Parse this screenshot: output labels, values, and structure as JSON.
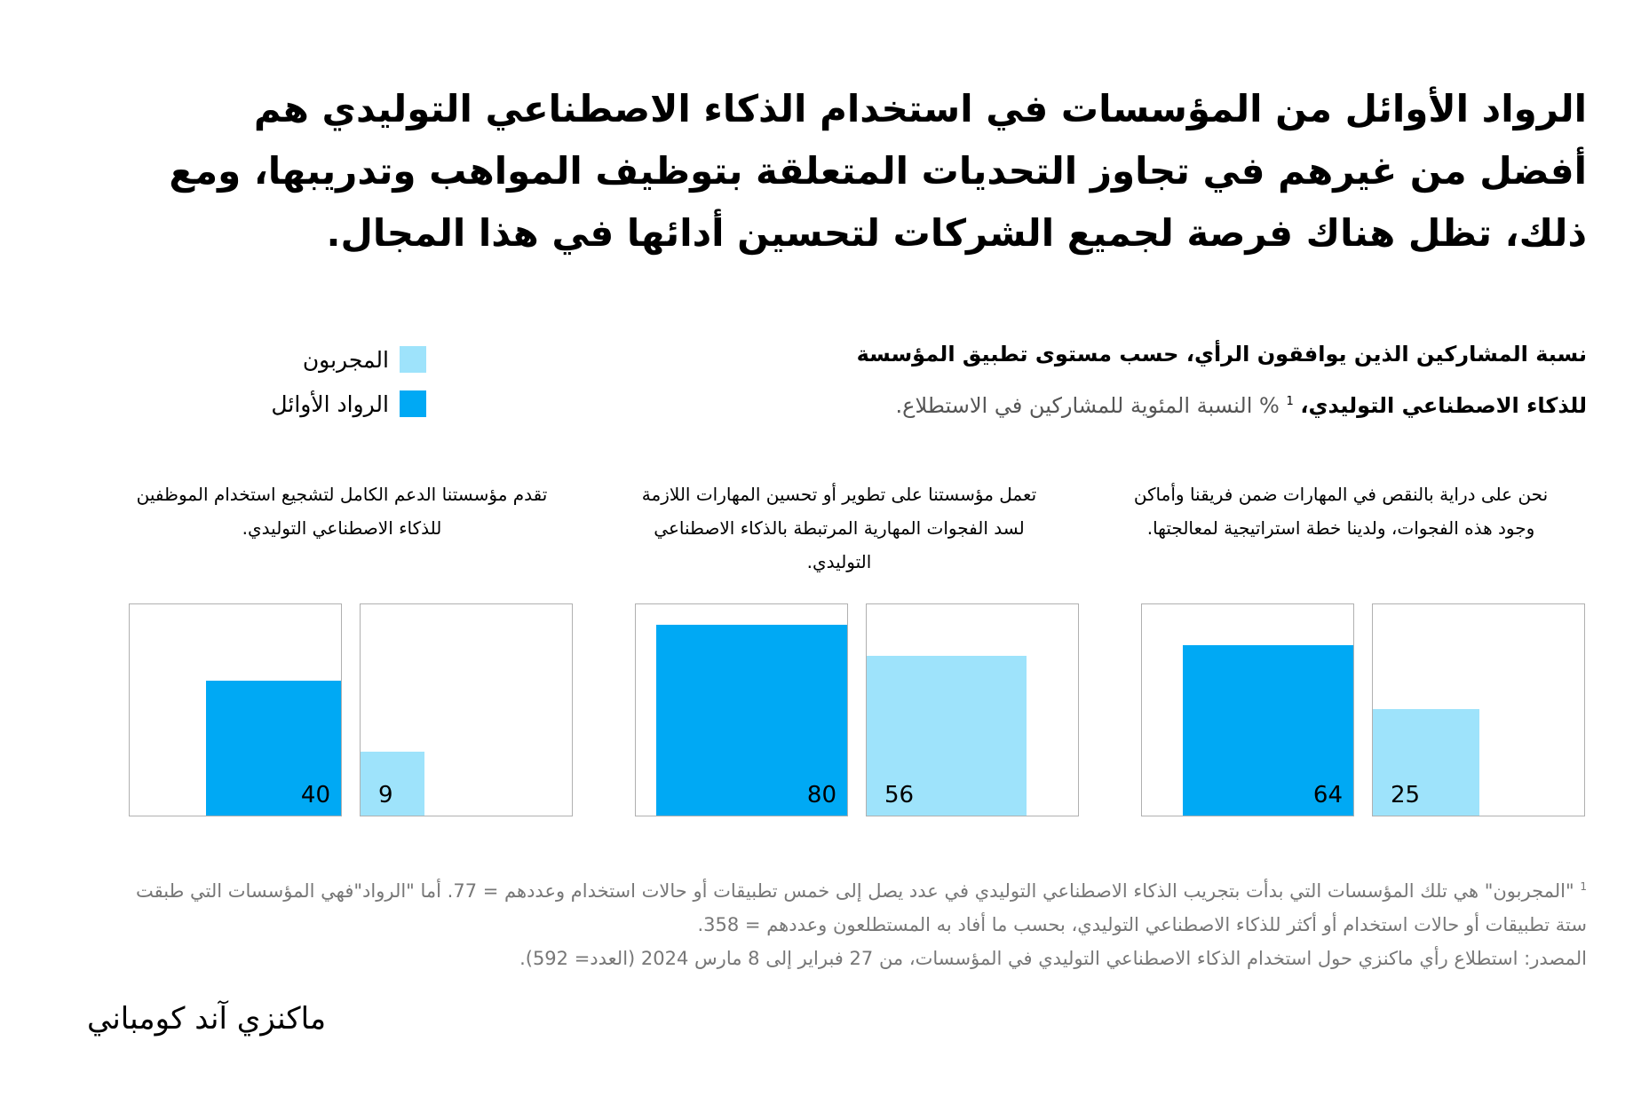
{
  "headline": "الرواد  الأوائل من المؤسسات في استخدام الذكاء الاصطناعي التوليدي هم أفضل من غيرهم في تجاوز التحديات المتعلقة بتوظيف المواهب وتدريبها، ومع ذلك، تظل هناك فرصة لجميع الشركات لتحسين أدائها في هذا المجال.",
  "subtitle": {
    "line1": "نسبة المشاركين الذين يوافقون الرأي، حسب مستوى تطبيق المؤسسة",
    "line2_bold": "للذكاء الاصطناعي التوليدي،",
    "footnote_mark": "1",
    "line2_light": "% النسبة المئوية للمشاركين في الاستطلاع."
  },
  "legend": {
    "experimenters": "المجربون",
    "leaders": "الرواد الأوائل"
  },
  "colors": {
    "leaders": "#00a9f4",
    "experimenters": "#9ee3fb"
  },
  "chart_data": {
    "type": "bar",
    "title": "نسبة المشاركين الذين يوافقون الرأي، حسب مستوى تطبيق المؤسسة للذكاء الاصطناعي التوليدي",
    "unit": "%",
    "ylim": [
      0,
      100
    ],
    "series_names": [
      "الرواد الأوائل",
      "المجربون"
    ],
    "panels": [
      {
        "question": "نحن على دراية بالنقص في المهارات ضمن فريقنا وأماكن وجود هذه الفجوات، ولدينا خطة استراتيجية لمعالجتها.",
        "leaders": 64,
        "experimenters": 25
      },
      {
        "question": "تعمل مؤسستنا على تطوير أو تحسين المهارات اللازمة لسد الفجوات المهارية المرتبطة بالذكاء الاصطناعي التوليدي.",
        "leaders": 80,
        "experimenters": 56
      },
      {
        "question": "تقدم مؤسستنا الدعم الكامل لتشجيع استخدام الموظفين للذكاء الاصطناعي التوليدي.",
        "leaders": 40,
        "experimenters": 9
      }
    ]
  },
  "footnotes": {
    "mark": "1",
    "note": "\"المجربون\" هي تلك المؤسسات التي بدأت بتجريب الذكاء الاصطناعي التوليدي في عدد يصل إلى خمس تطبيقات أو حالات استخدام وعددهم = 77. أما \"الرواد\"فهي المؤسسات التي طبقت ستة تطبيقات أو حالات استخدام أو أكثر للذكاء الاصطناعي التوليدي، بحسب ما أفاد به المستطلعون وعددهم = 358.",
    "source": "المصدر: استطلاع رأي ماكنزي حول استخدام الذكاء الاصطناعي التوليدي في المؤسسات، من 27 فبراير إلى 8 مارس 2024 (العدد= 592)."
  },
  "logo": "ماكنزي آند كومباني"
}
